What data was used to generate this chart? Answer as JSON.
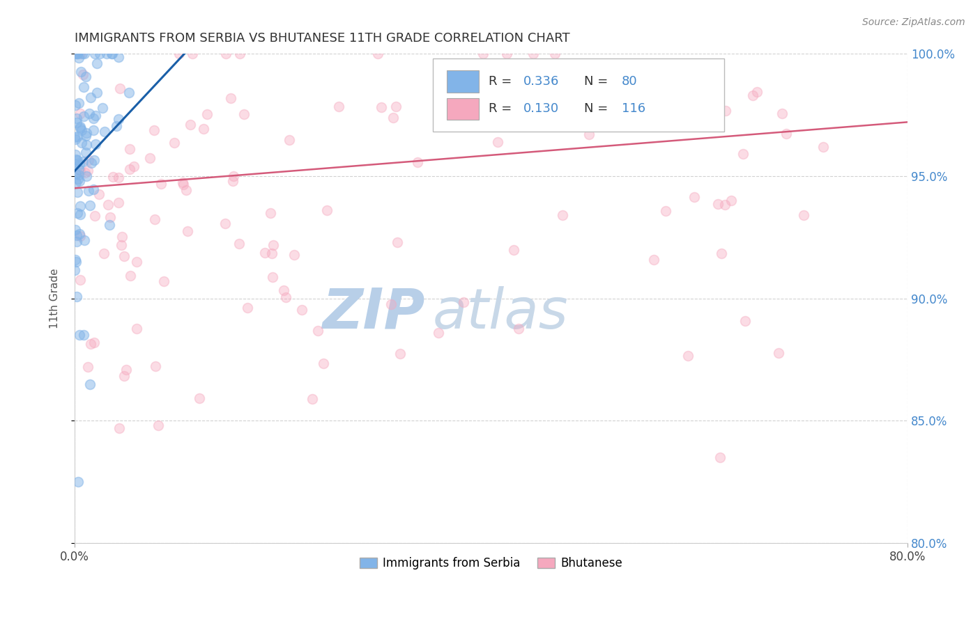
{
  "title": "IMMIGRANTS FROM SERBIA VS BHUTANESE 11TH GRADE CORRELATION CHART",
  "source_text": "Source: ZipAtlas.com",
  "ylabel": "11th Grade",
  "legend_label1": "Immigrants from Serbia",
  "legend_label2": "Bhutanese",
  "R1": 0.336,
  "N1": 80,
  "R2": 0.13,
  "N2": 116,
  "color1": "#82b4e8",
  "color2": "#f5a8be",
  "trendline_color1": "#1a5fa8",
  "trendline_color2": "#d45a7a",
  "x_min": 0.0,
  "x_max": 80.0,
  "y_min": 80.0,
  "y_max": 100.0,
  "x_ticks": [
    0.0,
    80.0
  ],
  "y_ticks": [
    80.0,
    85.0,
    90.0,
    95.0,
    100.0
  ],
  "watermark_zip": "ZIP",
  "watermark_atlas": "atlas",
  "watermark_color_zip": "#b8cfe8",
  "watermark_color_atlas": "#c8d8e8",
  "seed1": 42,
  "seed2": 77,
  "marker_size": 100,
  "alpha1": 0.5,
  "alpha2": 0.4,
  "trendline1_x0": 0.0,
  "trendline1_y0": 95.2,
  "trendline1_x1": 11.0,
  "trendline1_y1": 100.2,
  "trendline2_x0": 0.0,
  "trendline2_y0": 94.5,
  "trendline2_x1": 80.0,
  "trendline2_y1": 97.2
}
